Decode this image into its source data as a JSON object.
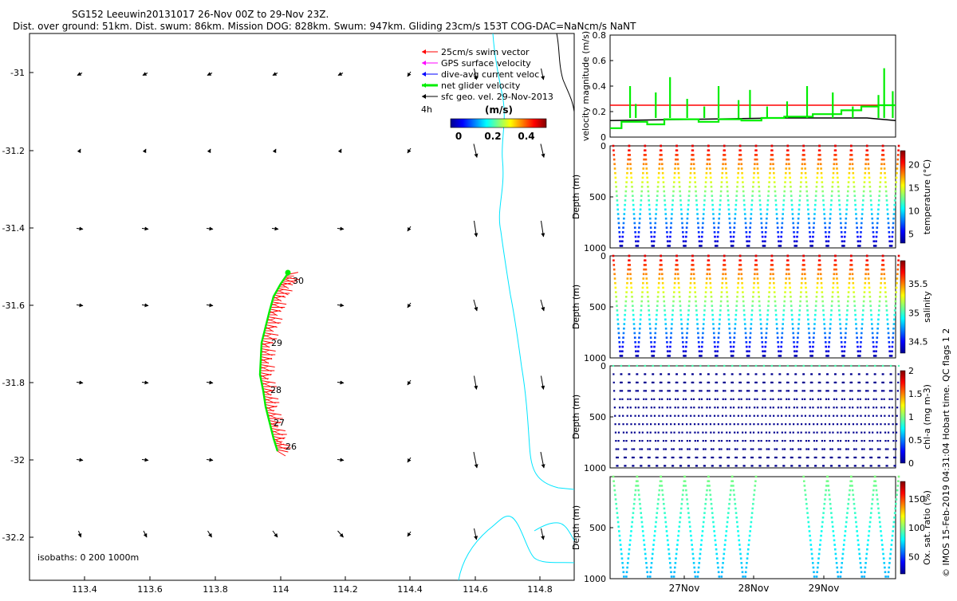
{
  "header": {
    "title": "SG152 Leeuwin20131017 26-Nov 00Z to 29-Nov 23Z.",
    "subtitle": "Dist. over ground: 51km. Dist. swum: 86km. Mission DOG: 828km. Swum: 947km. Gliding 23cm/s 153T COG-DAC=NaNcm/s NaNT"
  },
  "colors": {
    "swim": "#ff0000",
    "gps": "#ff00ff",
    "dac": "#0000ff",
    "net": "#00ee00",
    "geo": "#000000",
    "isobath": "#00e5ff"
  },
  "legend": {
    "items": [
      {
        "label": "25cm/s swim vector",
        "color": "#ff0000",
        "thick": false
      },
      {
        "label": "GPS surface velocity",
        "color": "#ff00ff",
        "thick": false
      },
      {
        "label": "dive-avg current veloc",
        "color": "#0000ff",
        "thick": false
      },
      {
        "label": "net glider velocity",
        "color": "#00ee00",
        "thick": true
      },
      {
        "label": "sfc geo. vel. 29-Nov-2013",
        "color": "#000000",
        "thick": false
      }
    ],
    "interval_label": "4h",
    "colorbar_title": "(m/s)",
    "colorbar_ticks": [
      "0",
      "0.2",
      "0.4"
    ]
  },
  "map": {
    "x_ticks": [
      "113.4",
      "113.6",
      "113.8",
      "114",
      "114.2",
      "114.4",
      "114.6",
      "114.8"
    ],
    "y_ticks": [
      "-31",
      "-31.2",
      "-31.4",
      "-31.6",
      "-31.8",
      "-32",
      "-32.2"
    ],
    "isobaths_label": "isobaths: 0   200   1000m",
    "day_labels": [
      "30",
      "29",
      "28",
      "27",
      "26"
    ]
  },
  "chart_data": [
    {
      "type": "line",
      "title": "",
      "ylabel": "velocity magnitude (m/s)",
      "ylim": [
        0,
        0.8
      ],
      "yticks": [
        "0",
        "0.2",
        "0.4",
        "0.6",
        "0.8"
      ],
      "series": [
        {
          "color": "#ff0000",
          "x": [
            0,
            1
          ],
          "values": [
            0.25,
            0.25
          ]
        },
        {
          "color": "#000000",
          "x": [
            0,
            0.3,
            0.6,
            0.9,
            1.0
          ],
          "values": [
            0.13,
            0.14,
            0.15,
            0.15,
            0.13
          ]
        },
        {
          "color": "#00ee00",
          "x": [
            0.0,
            0.04,
            0.04,
            0.13,
            0.13,
            0.19,
            0.19,
            0.31,
            0.31,
            0.38,
            0.38,
            0.46,
            0.46,
            0.53,
            0.53,
            0.61,
            0.61,
            0.71,
            0.71,
            0.81,
            0.81,
            0.88,
            0.88,
            0.94,
            0.94,
            1.0
          ],
          "values": [
            0.07,
            0.07,
            0.12,
            0.12,
            0.1,
            0.1,
            0.14,
            0.14,
            0.12,
            0.12,
            0.14,
            0.14,
            0.13,
            0.13,
            0.15,
            0.15,
            0.16,
            0.16,
            0.18,
            0.18,
            0.21,
            0.21,
            0.24,
            0.24,
            0.25,
            0.25
          ]
        }
      ]
    },
    {
      "type": "scatter",
      "ylabel": "Depth (m)",
      "ylim": [
        1000,
        0
      ],
      "yticks": [
        "0",
        "500",
        "1000"
      ],
      "colorbar_label": "temperature (°C)",
      "colorbar_ticks": [
        "5",
        "10",
        "15",
        "20"
      ],
      "clim": [
        3,
        23
      ],
      "dives": 18,
      "pattern": "full"
    },
    {
      "type": "scatter",
      "ylabel": "Depth (m)",
      "ylim": [
        1000,
        0
      ],
      "yticks": [
        "0",
        "500",
        "1000"
      ],
      "colorbar_label": "salinity",
      "colorbar_ticks": [
        "34.5",
        "35",
        "35.5"
      ],
      "clim": [
        34.3,
        35.9
      ],
      "dives": 18,
      "pattern": "full"
    },
    {
      "type": "scatter",
      "ylabel": "Depth (m)",
      "ylim": [
        1000,
        0
      ],
      "yticks": [
        "0",
        "500",
        "1000"
      ],
      "colorbar_label": "chl-a (mg m-3)",
      "colorbar_ticks": [
        "0",
        "0.5",
        "1",
        "1.5",
        "2"
      ],
      "clim": [
        0,
        2
      ],
      "dives": 36,
      "pattern": "sparse"
    },
    {
      "type": "scatter",
      "ylabel": "Depth (m)",
      "ylim": [
        1000,
        0
      ],
      "yticks": [
        "500",
        "1000"
      ],
      "colorbar_label": "Ox. sat. ratio (%)",
      "colorbar_ticks": [
        "50",
        "100",
        "150"
      ],
      "clim": [
        20,
        180
      ],
      "dives": 12,
      "pattern": "partial",
      "x_ticks": [
        "27Nov",
        "28Nov",
        "29Nov"
      ]
    }
  ],
  "footer": {
    "credit": "© IMOS 15-Feb-2019 04:31:04 Hobart time. QC flags 1  2"
  }
}
